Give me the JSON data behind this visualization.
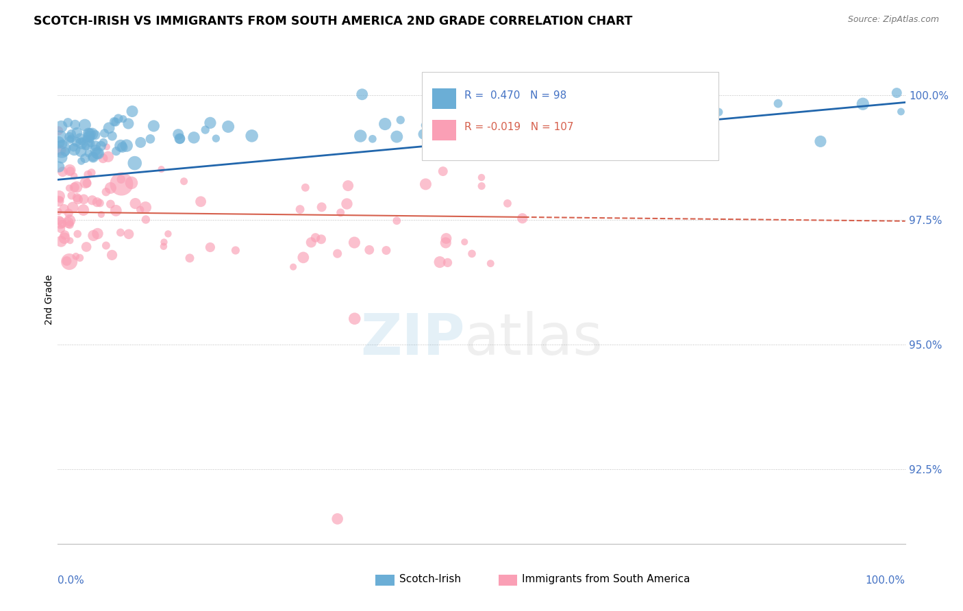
{
  "title": "SCOTCH-IRISH VS IMMIGRANTS FROM SOUTH AMERICA 2ND GRADE CORRELATION CHART",
  "source_text": "Source: ZipAtlas.com",
  "ylabel": "2nd Grade",
  "right_yticks": [
    92.5,
    95.0,
    97.5,
    100.0
  ],
  "right_ytick_labels": [
    "92.5%",
    "95.0%",
    "97.5%",
    "100.0%"
  ],
  "legend_label_blue": "Scotch-Irish",
  "legend_label_pink": "Immigrants from South America",
  "r_blue": 0.47,
  "n_blue": 98,
  "r_pink": -0.019,
  "n_pink": 107,
  "blue_color": "#6baed6",
  "pink_color": "#fa9fb5",
  "blue_line_color": "#2166ac",
  "pink_line_color": "#d6604d",
  "ylim_min": 91.0,
  "ylim_max": 100.8,
  "xlim_min": 0.0,
  "xlim_max": 100.0
}
